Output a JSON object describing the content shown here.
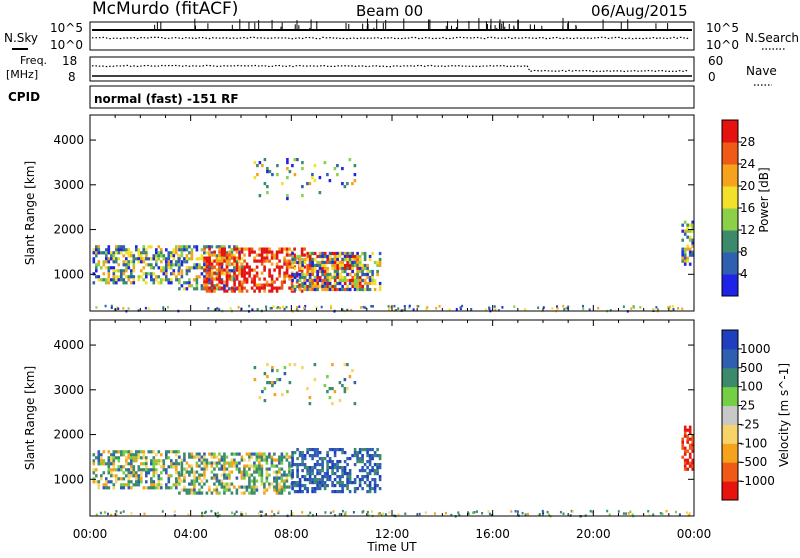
{
  "header": {
    "station": "McMurdo (fitACF)",
    "beam": "Beam 00",
    "date": "06/Aug/2015"
  },
  "status_panels": {
    "nsky_label": "N.Sky",
    "nsearch_label": "N.Search",
    "freq_label_1": "Freq.",
    "freq_label_2": "[MHz]",
    "nave_label": "Nave",
    "cpid_label": "CPID",
    "cpid_text": "normal (fast) -151 RF",
    "noise_ticks": [
      "10^5",
      "10^0"
    ],
    "freq_ticks": [
      "18",
      "8"
    ],
    "nave_ticks": [
      "60",
      "0"
    ]
  },
  "chart_data": [
    {
      "type": "heatmap",
      "name": "power",
      "ylabel": "Slant Range [km]",
      "xlabel": "Time UT",
      "x_ticks": [
        "00:00",
        "04:00",
        "08:00",
        "12:00",
        "16:00",
        "20:00",
        "00:00"
      ],
      "x_hours": [
        0,
        4,
        8,
        12,
        16,
        20,
        24
      ],
      "y_ticks": [
        1000,
        2000,
        3000,
        4000
      ],
      "ylim": [
        180,
        4560
      ],
      "xlim_hours": [
        0,
        24
      ],
      "colorbar": {
        "label": "Power [dB]",
        "ticks": [
          "28",
          "24",
          "20",
          "16",
          "12",
          "8",
          "4"
        ],
        "colors": [
          "#1f23e8",
          "#2f5fb0",
          "#3b8a6c",
          "#8ccf49",
          "#f2e12b",
          "#f5a21c",
          "#ef5a16",
          "#e5120f"
        ]
      },
      "scatter_regions": [
        {
          "t0": 0.1,
          "t1": 3.5,
          "r0": 800,
          "r1": 1650,
          "level": "mixed"
        },
        {
          "t0": 3.5,
          "t1": 6.0,
          "r0": 650,
          "r1": 1650,
          "level": "mixed"
        },
        {
          "t0": 4.5,
          "t1": 8.5,
          "r0": 600,
          "r1": 1600,
          "level": "high"
        },
        {
          "t0": 8.5,
          "t1": 10.8,
          "r0": 650,
          "r1": 1500,
          "level": "high"
        },
        {
          "t0": 8.0,
          "t1": 11.5,
          "r0": 650,
          "r1": 1500,
          "level": "mixed"
        },
        {
          "t0": 6.5,
          "t1": 10.5,
          "r0": 2700,
          "r1": 3600,
          "level": "sparse"
        },
        {
          "t0": 23.5,
          "t1": 23.9,
          "r0": 1250,
          "r1": 2200,
          "level": "mixed"
        }
      ]
    },
    {
      "type": "heatmap",
      "name": "velocity",
      "ylabel": "Slant Range [km]",
      "xlabel": "Time UT",
      "x_ticks": [
        "00:00",
        "04:00",
        "08:00",
        "12:00",
        "16:00",
        "20:00",
        "00:00"
      ],
      "x_hours": [
        0,
        4,
        8,
        12,
        16,
        20,
        24
      ],
      "y_ticks": [
        1000,
        2000,
        3000,
        4000
      ],
      "ylim": [
        180,
        4560
      ],
      "xlim_hours": [
        0,
        24
      ],
      "colorbar": {
        "label": "Velocity [m s^-1]",
        "ticks": [
          "1000",
          "500",
          "100",
          "25",
          "-25",
          "-100",
          "-500",
          "-1000"
        ],
        "colors": [
          "#e8120e",
          "#ef5a16",
          "#f5a21c",
          "#f7d46a",
          "#c8c8c8",
          "#74cf45",
          "#3b8a6c",
          "#2f5fb0",
          "#1f3fbf"
        ]
      },
      "scatter_regions": [
        {
          "t0": 0.1,
          "t1": 3.5,
          "r0": 800,
          "r1": 1650,
          "level": "mixed"
        },
        {
          "t0": 3.5,
          "t1": 8.0,
          "r0": 700,
          "r1": 1600,
          "level": "mixed"
        },
        {
          "t0": 8.0,
          "t1": 11.5,
          "r0": 700,
          "r1": 1700,
          "level": "blue"
        },
        {
          "t0": 6.5,
          "t1": 10.5,
          "r0": 2700,
          "r1": 3600,
          "level": "sparse"
        },
        {
          "t0": 23.5,
          "t1": 23.9,
          "r0": 1250,
          "r1": 2200,
          "level": "red"
        }
      ]
    }
  ]
}
